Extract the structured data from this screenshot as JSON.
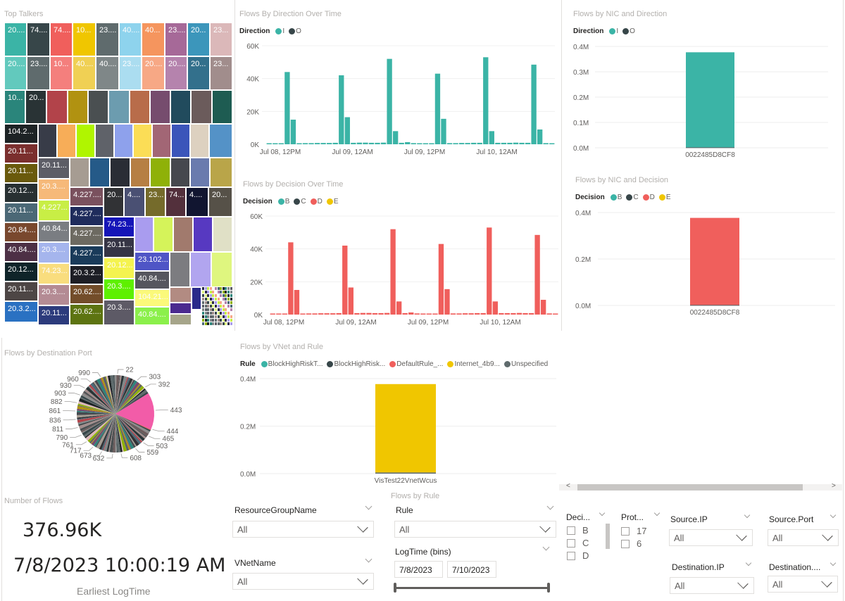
{
  "treemap": {
    "title": "Top Talkers",
    "cells": [
      {
        "label": "20....",
        "color": "#3bb4a6"
      },
      {
        "label": "74....",
        "color": "#374649"
      },
      {
        "label": "74....",
        "color": "#f05f5c"
      },
      {
        "label": "10...",
        "color": "#f0c600"
      },
      {
        "label": "23....",
        "color": "#5f6b6d"
      },
      {
        "label": "40....",
        "color": "#8ed3ed"
      },
      {
        "label": "40...",
        "color": "#f5955e"
      },
      {
        "label": "23....",
        "color": "#a66998"
      },
      {
        "label": "20...",
        "color": "#3c96bb"
      },
      {
        "label": "23...",
        "color": "#dbb8b9"
      },
      {
        "label": "20....",
        "color": "#62c9bd"
      },
      {
        "label": "23....",
        "color": "#5f6b6d"
      },
      {
        "label": "10...",
        "color": "#f47f7d"
      },
      {
        "label": "40....",
        "color": "#f0d054"
      },
      {
        "label": "40....",
        "color": "#7f8788"
      },
      {
        "label": "23....",
        "color": "#abddf0"
      },
      {
        "label": "20....",
        "color": "#f7a885"
      },
      {
        "label": "20....",
        "color": "#b583ad"
      },
      {
        "label": "20...",
        "color": "#33708c"
      },
      {
        "label": "23...",
        "color": "#a18d8c"
      },
      {
        "label": "10...",
        "color": "#2a857b"
      },
      {
        "label": "20...",
        "color": "#293335"
      },
      {
        "label": "",
        "color": "#b2434a"
      },
      {
        "label": "",
        "color": "#b19211"
      },
      {
        "label": "",
        "color": "#4a4f51"
      },
      {
        "label": "",
        "color": "#6c9caf"
      },
      {
        "label": "",
        "color": "#b86c4a"
      },
      {
        "label": "",
        "color": "#764c6e"
      },
      {
        "label": "",
        "color": "#214b5d"
      },
      {
        "label": "",
        "color": "#6b5b5b"
      },
      {
        "label": "",
        "color": "#1e5c52"
      },
      {
        "label": "104.2...",
        "color": "#1d2325"
      },
      {
        "label": "20.11...",
        "color": "#7b2f2e"
      },
      {
        "label": "",
        "color": "#383c48"
      },
      {
        "label": "",
        "color": "#f7ad58"
      },
      {
        "label": "",
        "color": "#b0f500"
      },
      {
        "label": "",
        "color": "#5f6269"
      },
      {
        "label": "",
        "color": "#8ea1ec"
      },
      {
        "label": "",
        "color": "#fbdd56"
      },
      {
        "label": "",
        "color": "#a26675"
      },
      {
        "label": "",
        "color": "#3b55ba"
      },
      {
        "label": "",
        "color": "#ddd1c0"
      },
      {
        "label": "",
        "color": "#5492c7"
      },
      {
        "label": "20.11...",
        "color": "#6a5a0c"
      },
      {
        "label": "20.11...",
        "color": "#5c5d66"
      },
      {
        "label": "",
        "color": "#a69c92"
      },
      {
        "label": "",
        "color": "#255a88"
      },
      {
        "label": "",
        "color": "#2a2d35"
      },
      {
        "label": "",
        "color": "#b67f44"
      },
      {
        "label": "",
        "color": "#8fb108"
      },
      {
        "label": "",
        "color": "#46484e"
      },
      {
        "label": "",
        "color": "#6a7bae"
      },
      {
        "label": "",
        "color": "#b9a549"
      },
      {
        "label": "20.12...",
        "color": "#283032"
      },
      {
        "label": "20.3....",
        "color": "#f6b979"
      },
      {
        "label": "20.11...",
        "color": "#4b6876"
      },
      {
        "label": "4.227...",
        "color": "#c8ee45"
      },
      {
        "label": "4.227....",
        "color": "#7a515e"
      },
      {
        "label": "20...",
        "color": "#313235"
      },
      {
        "label": "4....",
        "color": "#4a5073"
      },
      {
        "label": "23...",
        "color": "#756b2b"
      },
      {
        "label": "74...",
        "color": "#53303c"
      },
      {
        "label": "4....",
        "color": "#111530"
      },
      {
        "label": "20...",
        "color": "#565148"
      },
      {
        "label": "20.84....",
        "color": "#79482e"
      },
      {
        "label": "40.84...",
        "color": "#7a7d82"
      },
      {
        "label": "4.227....",
        "color": "#1f2c5c"
      },
      {
        "label": "40.84....",
        "color": "#4d3045"
      },
      {
        "label": "20.3....",
        "color": "#a5b5ed"
      },
      {
        "label": "4.227....",
        "color": "#6d6a61"
      },
      {
        "label": "74.23...",
        "color": "#1515b8"
      },
      {
        "label": "",
        "color": "#a99cef"
      },
      {
        "label": "",
        "color": "#d5f35a"
      },
      {
        "label": "",
        "color": "#a17a6d"
      },
      {
        "label": "",
        "color": "#5739c1"
      },
      {
        "label": "",
        "color": "#e0e0c6"
      },
      {
        "label": "20.12...",
        "color": "#0f2429"
      },
      {
        "label": "74.23...",
        "color": "#f9dd7e"
      },
      {
        "label": "4.227....",
        "color": "#1a3b5a"
      },
      {
        "label": "20.11...",
        "color": "#363545"
      },
      {
        "label": "23.102...",
        "color": "#4f55c6"
      },
      {
        "label": "",
        "color": "#7c7c80"
      },
      {
        "label": "",
        "color": "#b1a5ef"
      },
      {
        "label": "",
        "color": "#dff67f"
      },
      {
        "label": "20.11...",
        "color": "#4d4645"
      },
      {
        "label": "20.3....",
        "color": "#b48b94"
      },
      {
        "label": "20.3.2...",
        "color": "#1d1e25"
      },
      {
        "label": "20.12...",
        "color": "#f4f34f"
      },
      {
        "label": "40.84....",
        "color": "#56565e"
      },
      {
        "label": "20.3.2...",
        "color": "#2a71c2"
      },
      {
        "label": "20.11...",
        "color": "#2c3b7c"
      },
      {
        "label": "20.62....",
        "color": "#734d2a"
      },
      {
        "label": "20.62....",
        "color": "#5d7411"
      },
      {
        "label": "20.3....",
        "color": "#5ef000"
      },
      {
        "label": "20.3....",
        "color": "#5d5a66"
      },
      {
        "label": "104.21...",
        "color": "#fbf97a"
      },
      {
        "label": "40.84....",
        "color": "#8bf04b"
      },
      {
        "label": "",
        "color": "#b28b82"
      },
      {
        "label": "",
        "color": "#2a2a8a"
      },
      {
        "label": "",
        "color": "#4b2a8f"
      },
      {
        "label": "",
        "color": "#a6a58a"
      }
    ]
  },
  "direction_chart": {
    "title": "Flows By Direction Over Time",
    "legend_title": "Direction",
    "legend": [
      {
        "label": "I",
        "color": "#3bb4a6"
      },
      {
        "label": "O",
        "color": "#374649"
      }
    ]
  },
  "decision_chart": {
    "title": "Flows by Decision Over Time",
    "legend_title": "Decision",
    "legend": [
      {
        "label": "B",
        "color": "#3bb4a6"
      },
      {
        "label": "C",
        "color": "#374649"
      },
      {
        "label": "D",
        "color": "#f05f5c"
      },
      {
        "label": "E",
        "color": "#f0c600"
      }
    ]
  },
  "nic_direction_chart": {
    "title": "Flows by NIC and Direction",
    "legend_title": "Direction",
    "legend": [
      {
        "label": "I",
        "color": "#3bb4a6"
      },
      {
        "label": "O",
        "color": "#374649"
      }
    ]
  },
  "nic_decision_chart": {
    "title": "Flows by NIC and Decision",
    "legend_title": "Decision",
    "legend": [
      {
        "label": "B",
        "color": "#3bb4a6"
      },
      {
        "label": "C",
        "color": "#374649"
      },
      {
        "label": "D",
        "color": "#f05f5c"
      },
      {
        "label": "E",
        "color": "#f0c600"
      }
    ]
  },
  "vnet_rule_chart": {
    "title": "Flows by VNet and Rule",
    "legend_title": "Rule",
    "legend": [
      {
        "label": "BlockHighRiskT...",
        "color": "#3bb4a6"
      },
      {
        "label": "BlockHighRisk...",
        "color": "#374649"
      },
      {
        "label": "DefaultRule_...",
        "color": "#f05f5c"
      },
      {
        "label": "Internet_4b9...",
        "color": "#f0c600"
      },
      {
        "label": "Unspecified",
        "color": "#5f6b6d"
      }
    ]
  },
  "pie_chart": {
    "title": "Flows by Destination Port",
    "labels": [
      "22",
      "303",
      "392",
      "443",
      "444",
      "465",
      "503",
      "559",
      "608",
      "632",
      "673",
      "717",
      "761",
      "790",
      "811",
      "836",
      "861",
      "882",
      "903",
      "930",
      "960",
      "990"
    ]
  },
  "card": {
    "title": "Number of Flows",
    "value": "376.96K",
    "date_value": "7/8/2023 10:00:19 AM",
    "date_label": "Earliest LogTime"
  },
  "slicers": {
    "flows_by_rule_title": "Flows by Rule",
    "resource_group": {
      "label": "ResourceGroupName",
      "value": "All"
    },
    "vnet": {
      "label": "VNetName",
      "value": "All"
    },
    "rule": {
      "label": "Rule",
      "value": "All"
    },
    "logtime": {
      "label": "LogTime (bins)",
      "start": "7/8/2023",
      "end": "7/10/2023",
      "range_fraction_start": 0,
      "range_fraction_end": 1
    },
    "decision": {
      "label": "Deci...",
      "options": [
        "B",
        "C",
        "D"
      ]
    },
    "protocol": {
      "label": "Prot...",
      "options": [
        "17",
        "6"
      ]
    },
    "source_ip": {
      "label": "Source.IP",
      "value": "All"
    },
    "source_port": {
      "label": "Source.Port",
      "value": "All"
    },
    "destination_ip": {
      "label": "Destination.IP",
      "value": "All"
    },
    "destination_port": {
      "label": "Destination....",
      "value": "All"
    }
  },
  "scrollbar": {
    "left_arrow": "<",
    "right_arrow": ">"
  },
  "chart_data": [
    {
      "type": "bar",
      "title": "Flows By Direction Over Time",
      "xlabel": "",
      "ylabel": "",
      "x_tick_labels": [
        "Jul 08, 12PM",
        "Jul 09, 12AM",
        "Jul 09, 12PM",
        "Jul 10, 12AM"
      ],
      "y_tick_labels": [
        "0K",
        "20K",
        "40K",
        "60K"
      ],
      "ylim": [
        0,
        60000
      ],
      "grid": true,
      "legend_position": "top-left",
      "series": [
        {
          "name": "I",
          "color": "#3bb4a6",
          "values": [
            600,
            600,
            600,
            44000,
            15000,
            600,
            700,
            700,
            800,
            800,
            800,
            900,
            42000,
            16500,
            900,
            1000,
            1000,
            900,
            900,
            1000,
            52000,
            8000,
            900,
            1300,
            700,
            600,
            600,
            600,
            43000,
            15500,
            700,
            700,
            800,
            800,
            900,
            900,
            53000,
            8000,
            900,
            900,
            900,
            1000,
            900,
            900,
            48500,
            9000,
            700,
            600
          ]
        },
        {
          "name": "O",
          "color": "#374649",
          "values": []
        }
      ]
    },
    {
      "type": "bar",
      "title": "Flows by Decision Over Time",
      "xlabel": "",
      "ylabel": "",
      "x_tick_labels": [
        "Jul 08, 12PM",
        "Jul 09, 12AM",
        "Jul 09, 12PM",
        "Jul 10, 12AM"
      ],
      "y_tick_labels": [
        "0K",
        "20K",
        "40K",
        "60K"
      ],
      "ylim": [
        0,
        60000
      ],
      "grid": true,
      "legend_position": "top-left",
      "series": [
        {
          "name": "D",
          "color": "#f05f5c",
          "values": [
            600,
            600,
            600,
            44000,
            15000,
            600,
            700,
            700,
            800,
            800,
            800,
            900,
            42000,
            16500,
            900,
            1000,
            1000,
            900,
            900,
            1000,
            52000,
            8000,
            900,
            1300,
            700,
            600,
            600,
            600,
            43000,
            15500,
            700,
            700,
            800,
            800,
            900,
            900,
            53000,
            8000,
            900,
            900,
            900,
            1000,
            900,
            900,
            48500,
            9000,
            700,
            600
          ]
        }
      ]
    },
    {
      "type": "bar",
      "title": "Flows by NIC and Direction",
      "categories": [
        "0022485D8CF8"
      ],
      "y_tick_labels": [
        "0.0M",
        "0.1M",
        "0.2M",
        "0.3M",
        "0.4M"
      ],
      "ylim": [
        0,
        400000
      ],
      "series": [
        {
          "name": "I",
          "color": "#3bb4a6",
          "values": [
            375000
          ]
        },
        {
          "name": "O",
          "color": "#374649",
          "values": [
            1960
          ]
        }
      ]
    },
    {
      "type": "bar",
      "title": "Flows by NIC and Decision",
      "categories": [
        "0022485D8CF8"
      ],
      "y_tick_labels": [
        "0.0M",
        "0.2M",
        "0.4M"
      ],
      "ylim": [
        0,
        400000
      ],
      "series": [
        {
          "name": "D",
          "color": "#f05f5c",
          "values": [
            375000
          ]
        },
        {
          "name": "C",
          "color": "#374649",
          "values": [
            1960
          ]
        }
      ]
    },
    {
      "type": "bar",
      "title": "Flows by VNet and Rule",
      "categories": [
        "VisTest22VnetWcus"
      ],
      "y_tick_labels": [
        "0.0M",
        "0.2M",
        "0.4M"
      ],
      "ylim": [
        0,
        400000
      ],
      "series": [
        {
          "name": "Internet_4b9...",
          "color": "#f0c600",
          "values": [
            372000
          ]
        },
        {
          "name": "Unspecified",
          "color": "#5f6b6d",
          "values": [
            4960
          ]
        }
      ]
    },
    {
      "type": "pie",
      "title": "Flows by Destination Port",
      "labels": [
        "22",
        "303",
        "392",
        "443",
        "444",
        "465",
        "503",
        "559",
        "608",
        "632",
        "673",
        "717",
        "761",
        "790",
        "811",
        "836",
        "861",
        "882",
        "903",
        "930",
        "960",
        "990"
      ],
      "highlight": {
        "label": "443",
        "share": 0.155,
        "color": "#f25ca8"
      }
    }
  ]
}
